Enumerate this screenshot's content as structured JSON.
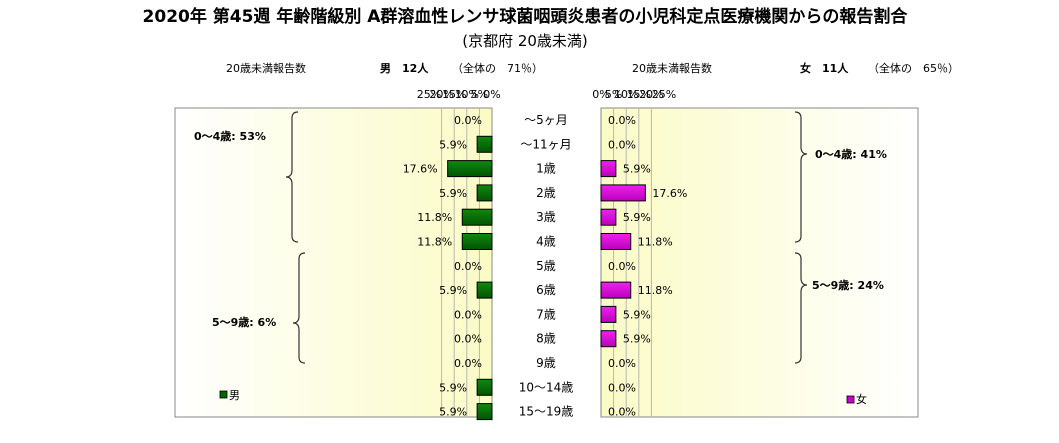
{
  "title": "2020年 第45週 年齢階級別 A群溶血性レンサ球菌咽頭炎患者の小児科定点医療機関からの報告割合",
  "subtitle": "(京都府 20歳未満)",
  "categories": [
    "～5ヶ月",
    "～11ヶ月",
    "1歳",
    "2歳",
    "3歳",
    "4歳",
    "5歳",
    "6歳",
    "7歳",
    "8歳",
    "9歳",
    "10～14歳",
    "15～19歳"
  ],
  "male": {
    "header_label": "20歳未満報告数",
    "header_count": "男　12人",
    "header_share": "（全体の　71％）",
    "legend": "男",
    "color": "#006600",
    "group_labels": [
      "0～4歳: 53%",
      "5～9歳: 6%"
    ]
  },
  "female": {
    "header_label": "20歳未満報告数",
    "header_count": "女　11人",
    "header_share": "（全体の　65％）",
    "legend": "女",
    "color": "#cc00cc",
    "group_labels": [
      "0～4歳: 41%",
      "5～9歳: 24%"
    ]
  },
  "chart_data": [
    {
      "type": "bar",
      "orientation": "horizontal-reversed",
      "series": [
        {
          "name": "男",
          "values": [
            0.0,
            5.9,
            17.6,
            5.9,
            11.8,
            11.8,
            0.0,
            5.9,
            0.0,
            0.0,
            0.0,
            5.9,
            5.9
          ]
        }
      ],
      "value_labels": [
        "0.0%",
        "5.9%",
        "17.6%",
        "5.9%",
        "11.8%",
        "11.8%",
        "0.0%",
        "5.9%",
        "0.0%",
        "0.0%",
        "0.0%",
        "5.9%",
        "5.9%"
      ],
      "xlim": [
        0,
        25
      ],
      "ticks": [
        "25%",
        "20%",
        "15%",
        "10%",
        "5%",
        "0%"
      ],
      "grid": true
    },
    {
      "type": "bar",
      "orientation": "horizontal",
      "series": [
        {
          "name": "女",
          "values": [
            0.0,
            0.0,
            5.9,
            17.6,
            5.9,
            11.8,
            0.0,
            11.8,
            5.9,
            5.9,
            0.0,
            0.0,
            0.0
          ]
        }
      ],
      "value_labels": [
        "0.0%",
        "0.0%",
        "5.9%",
        "17.6%",
        "5.9%",
        "11.8%",
        "0.0%",
        "11.8%",
        "5.9%",
        "5.9%",
        "0.0%",
        "0.0%",
        "0.0%"
      ],
      "xlim": [
        0,
        25
      ],
      "ticks": [
        "0%",
        "5%",
        "10%",
        "15%",
        "20%",
        "25%"
      ],
      "grid": true
    }
  ]
}
